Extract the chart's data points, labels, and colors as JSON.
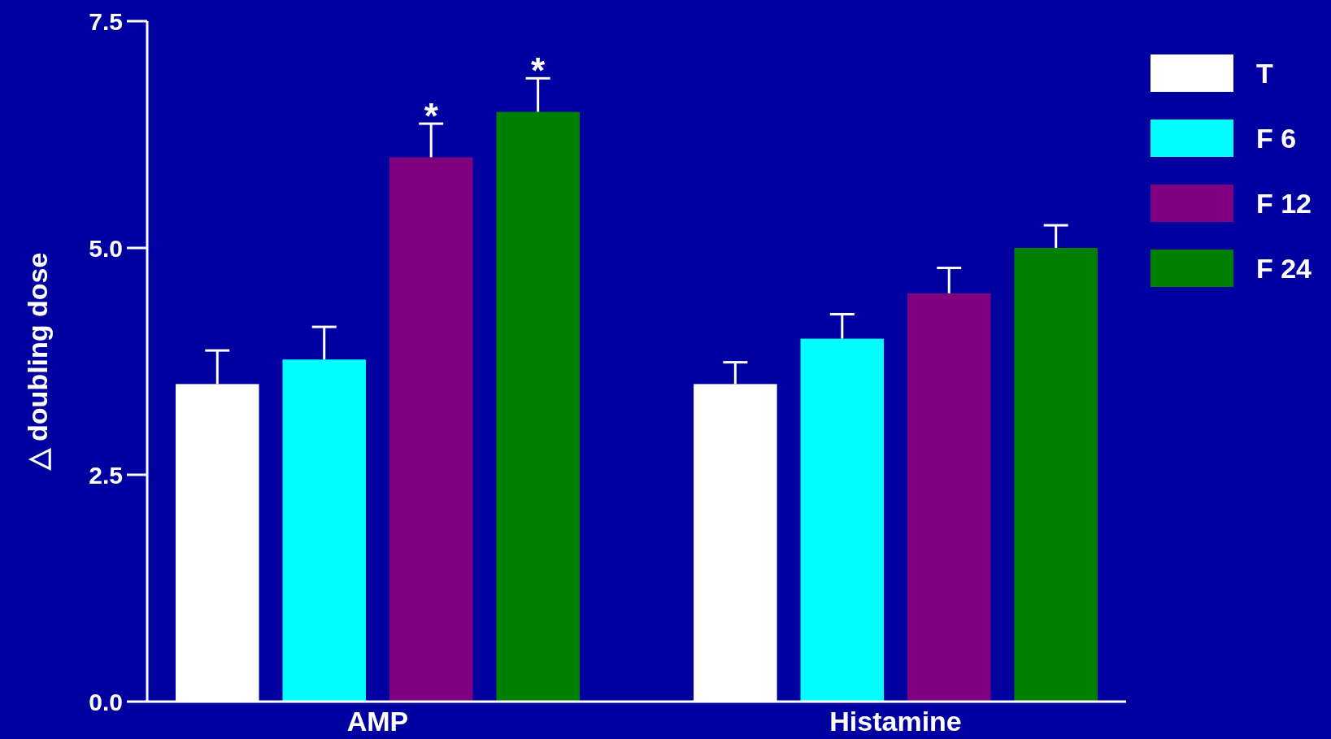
{
  "chart_data": {
    "type": "bar",
    "categories": [
      "AMP",
      "Histamine"
    ],
    "ylabel": "△ doubling dose",
    "ylim": [
      0,
      7.5
    ],
    "yticks": [
      {
        "value": 0,
        "label": "0.0"
      },
      {
        "value": 2.5,
        "label": "2.5"
      },
      {
        "value": 5,
        "label": "5.0"
      },
      {
        "value": 7.5,
        "label": "7.5"
      }
    ],
    "grid": false,
    "legend": "top right",
    "series": [
      {
        "name": "T",
        "color": "#ffffff",
        "values": [
          3.5,
          3.5
        ],
        "errors": [
          [
            3.5,
            3.87
          ],
          [
            3.5,
            3.74
          ]
        ]
      },
      {
        "name": "F 6",
        "color": "#00ffff",
        "values": [
          3.77,
          4.0
        ],
        "errors": [
          [
            3.77,
            4.13
          ],
          [
            4.0,
            4.27
          ]
        ]
      },
      {
        "name": "F 12",
        "color": "#800080",
        "values": [
          6.0,
          4.5
        ],
        "errors": [
          [
            6.0,
            6.37
          ],
          [
            4.5,
            4.78
          ]
        ]
      },
      {
        "name": "F 24",
        "color": "#008000",
        "values": [
          6.5,
          5.0
        ],
        "errors": [
          [
            6.5,
            6.87
          ],
          [
            5.0,
            5.25
          ]
        ]
      }
    ],
    "annotations": [
      "*",
      "*"
    ]
  }
}
